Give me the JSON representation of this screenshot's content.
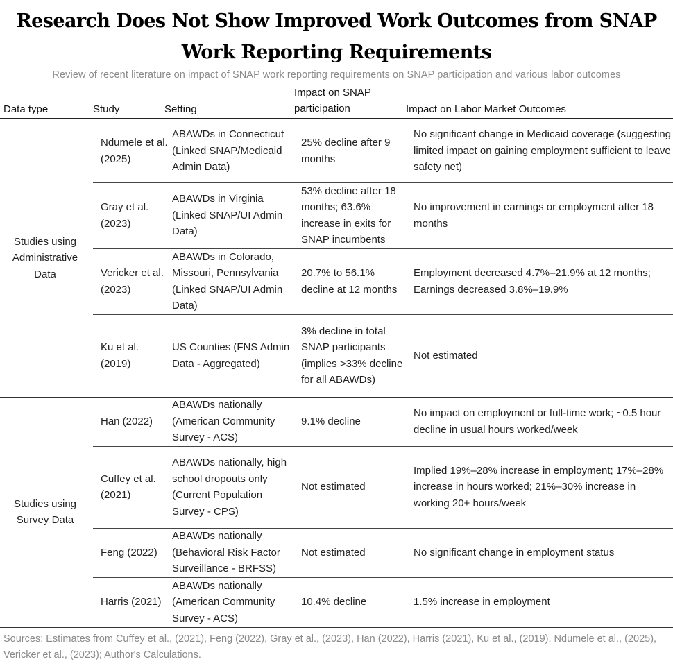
{
  "title": "Research Does Not Show Improved Work Outcomes from SNAP Work Reporting Requirements",
  "subtitle": "Review of recent literature on impact of SNAP work reporting requirements on SNAP participation and various labor outcomes",
  "headers": {
    "data_type": "Data type",
    "study": "Study",
    "setting": "Setting",
    "impact_snap": "Impact on SNAP participation",
    "impact_labor": "Impact on Labor Market Outcomes"
  },
  "groups": [
    {
      "label": "Studies using Administrative Data"
    },
    {
      "label": "Studies using Survey Data"
    }
  ],
  "rows": [
    {
      "study": "Ndumele et al. (2025)",
      "setting": "ABAWDs in Connecticut (Linked SNAP/Medicaid Admin Data)",
      "snap": "25% decline after 9 months",
      "labor": "No significant change in Medicaid coverage (suggesting limited impact on gaining employment sufficient to leave safety net)"
    },
    {
      "study": "Gray et al. (2023)",
      "setting": "ABAWDs in Virginia (Linked SNAP/UI Admin Data)",
      "snap": "53% decline after 18 months; 63.6% increase in exits for SNAP incumbents",
      "labor": "No improvement in earnings or employment after 18 months"
    },
    {
      "study": "Vericker et al. (2023)",
      "setting": "ABAWDs in Colorado, Missouri, Pennsylvania (Linked SNAP/UI Admin Data)",
      "snap": "20.7% to 56.1% decline at 12 months",
      "labor": "Employment decreased 4.7%–21.9% at 12 months; Earnings decreased 3.8%–19.9%"
    },
    {
      "study": "Ku et al. (2019)",
      "setting": "US Counties (FNS Admin Data - Aggregated)",
      "snap": "3% decline in total SNAP participants (implies >33% decline for all ABAWDs)",
      "labor": "Not estimated"
    },
    {
      "study": "Han (2022)",
      "setting": "ABAWDs nationally (American Community Survey - ACS)",
      "snap": "9.1% decline",
      "labor": "No impact on employment or full-time work; ~0.5 hour decline in usual hours worked/week"
    },
    {
      "study": "Cuffey et al. (2021)",
      "setting": "ABAWDs nationally, high school dropouts only (Current Population Survey - CPS)",
      "snap": "Not estimated",
      "labor": "Implied 19%–28% increase in employment; 17%–28% increase in hours worked; 21%–30% increase in working 20+ hours/week"
    },
    {
      "study": "Feng (2022)",
      "setting": "ABAWDs nationally (Behavioral Risk Factor Surveillance - BRFSS)",
      "snap": "Not estimated",
      "labor": "No significant change in employment status"
    },
    {
      "study": "Harris (2021)",
      "setting": "ABAWDs nationally (American Community Survey - ACS)",
      "snap": "10.4% decline",
      "labor": "1.5% increase in employment"
    }
  ],
  "footer": "Sources: Estimates from Cuffey et al., (2021), Feng (2022), Gray et al., (2023), Han (2022), Harris (2021), Ku et al., (2019), Ndumele et al., (2025), Vericker et al., (2023); Author's Calculations."
}
